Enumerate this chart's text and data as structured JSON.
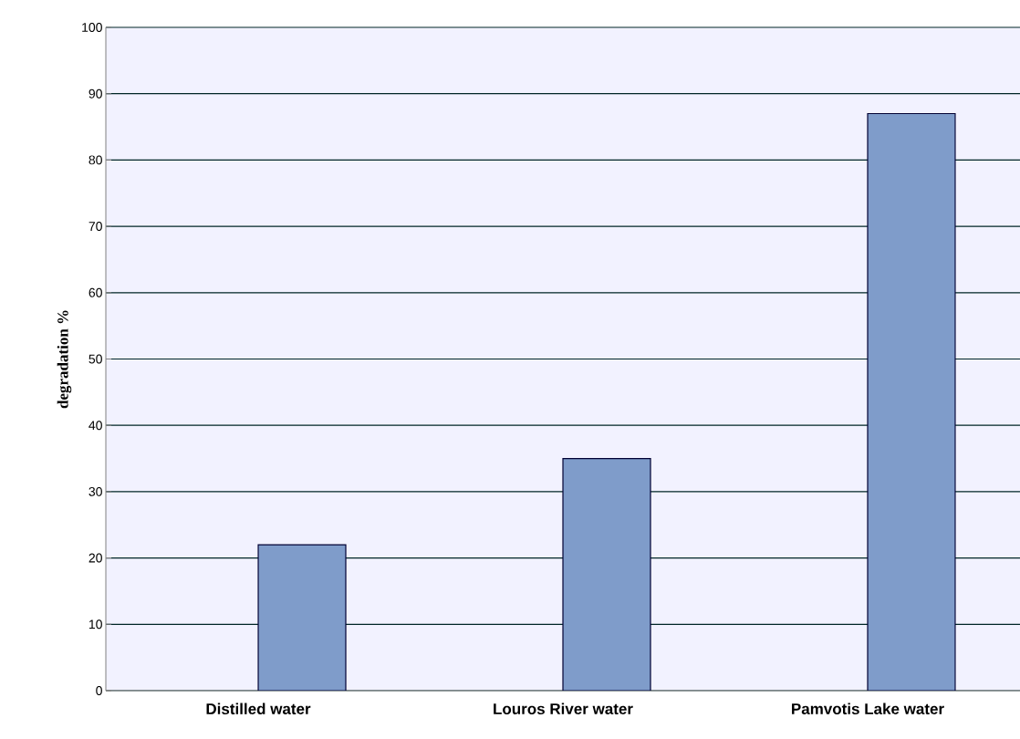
{
  "chart_data": {
    "type": "bar",
    "ylabel": "degradation %",
    "categories": [
      "Distilled water",
      "Louros River water",
      "Pamvotis Lake water"
    ],
    "values": [
      22,
      35,
      87
    ],
    "color": "#7f9cca",
    "ylim": [
      0,
      100
    ],
    "yticks": [
      0,
      10,
      20,
      30,
      40,
      50,
      60,
      70,
      80,
      90,
      100
    ],
    "grid": "y"
  }
}
